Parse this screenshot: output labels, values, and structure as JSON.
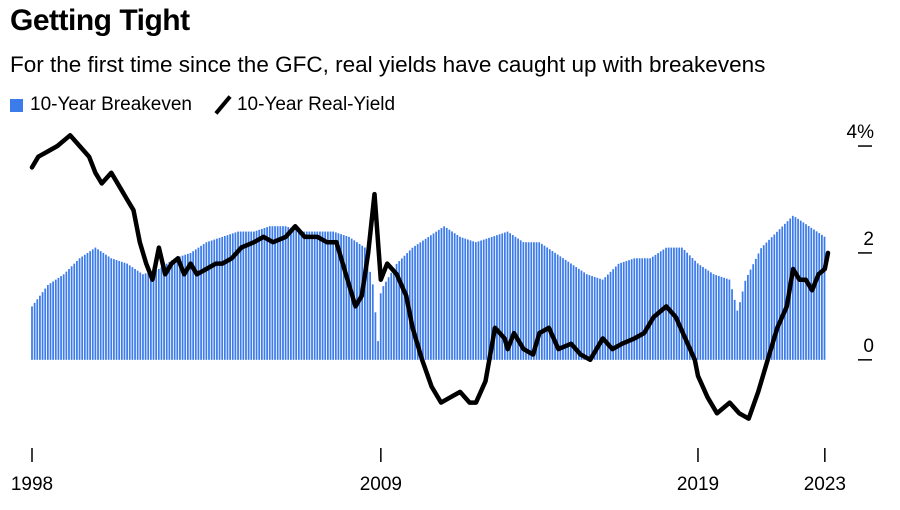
{
  "title": "Getting Tight",
  "subtitle": "For the first time since the GFC, real yields have caught up with breakevens",
  "legend": {
    "breakeven_label": "10-Year Breakeven",
    "realyield_label": "10-Year Real-Yield"
  },
  "colors": {
    "breakeven": "#3c7bea",
    "realyield": "#000000",
    "axis": "#000000"
  },
  "chart_data": {
    "type": "bar",
    "x_range": [
      1998.0,
      2023.1
    ],
    "ylim": [
      -1.5,
      4.3
    ],
    "grid": false,
    "legend_placement": "top-left",
    "y_ticks": [
      {
        "value": 4,
        "label": "4%"
      },
      {
        "value": 2,
        "label": "2"
      },
      {
        "value": 0,
        "label": "0"
      }
    ],
    "x_ticks": [
      {
        "value": 1998,
        "label": "1998"
      },
      {
        "value": 2009,
        "label": "2009"
      },
      {
        "value": 2019,
        "label": "2019"
      },
      {
        "value": 2023,
        "label": "2023"
      }
    ],
    "series": [
      {
        "name": "10-Year Breakeven",
        "type": "bar",
        "x": [
          1998.0,
          1998.5,
          1999.0,
          1999.5,
          2000.0,
          2000.5,
          2001.0,
          2001.5,
          2002.0,
          2002.5,
          2003.0,
          2003.5,
          2004.0,
          2004.5,
          2005.0,
          2005.5,
          2006.0,
          2006.5,
          2007.0,
          2007.5,
          2008.0,
          2008.5,
          2008.75,
          2008.92,
          2009.0,
          2009.5,
          2010.0,
          2010.5,
          2011.0,
          2011.5,
          2012.0,
          2012.5,
          2013.0,
          2013.5,
          2014.0,
          2014.5,
          2015.0,
          2015.5,
          2016.0,
          2016.5,
          2017.0,
          2017.5,
          2018.0,
          2018.5,
          2019.0,
          2019.5,
          2020.0,
          2020.25,
          2020.5,
          2021.0,
          2021.5,
          2022.0,
          2022.5,
          2023.0
        ],
        "values": [
          1.0,
          1.4,
          1.6,
          1.9,
          2.1,
          1.9,
          1.8,
          1.6,
          1.7,
          1.9,
          2.0,
          2.2,
          2.3,
          2.4,
          2.4,
          2.5,
          2.5,
          2.4,
          2.4,
          2.4,
          2.3,
          2.1,
          1.4,
          0.3,
          1.3,
          1.8,
          2.1,
          2.3,
          2.5,
          2.3,
          2.2,
          2.3,
          2.4,
          2.2,
          2.2,
          2.0,
          1.8,
          1.6,
          1.5,
          1.8,
          1.9,
          1.9,
          2.1,
          2.1,
          1.8,
          1.6,
          1.5,
          0.9,
          1.5,
          2.1,
          2.4,
          2.7,
          2.5,
          2.3
        ]
      },
      {
        "name": "10-Year Real-Yield",
        "type": "line",
        "x": [
          1998.0,
          1998.2,
          1998.5,
          1998.8,
          1999.0,
          1999.2,
          1999.5,
          1999.8,
          2000.0,
          2000.2,
          2000.5,
          2000.8,
          2001.0,
          2001.2,
          2001.4,
          2001.6,
          2001.8,
          2002.0,
          2002.2,
          2002.4,
          2002.6,
          2002.8,
          2003.0,
          2003.2,
          2003.5,
          2003.8,
          2004.0,
          2004.3,
          2004.6,
          2005.0,
          2005.3,
          2005.6,
          2006.0,
          2006.3,
          2006.6,
          2007.0,
          2007.3,
          2007.6,
          2008.0,
          2008.2,
          2008.4,
          2008.6,
          2008.8,
          2009.0,
          2009.2,
          2009.5,
          2009.8,
          2010.0,
          2010.3,
          2010.6,
          2010.9,
          2011.2,
          2011.5,
          2011.8,
          2012.0,
          2012.3,
          2012.6,
          2012.9,
          2013.0,
          2013.2,
          2013.5,
          2013.8,
          2014.0,
          2014.3,
          2014.6,
          2015.0,
          2015.3,
          2015.6,
          2016.0,
          2016.3,
          2016.6,
          2017.0,
          2017.3,
          2017.6,
          2018.0,
          2018.3,
          2018.6,
          2018.9,
          2019.0,
          2019.3,
          2019.6,
          2020.0,
          2020.3,
          2020.6,
          2020.9,
          2021.2,
          2021.5,
          2021.8,
          2022.0,
          2022.2,
          2022.4,
          2022.6,
          2022.8,
          2023.0,
          2023.1
        ],
        "values": [
          3.6,
          3.8,
          3.9,
          4.0,
          4.1,
          4.2,
          4.0,
          3.8,
          3.5,
          3.3,
          3.5,
          3.2,
          3.0,
          2.8,
          2.2,
          1.8,
          1.5,
          2.1,
          1.6,
          1.8,
          1.9,
          1.6,
          1.8,
          1.6,
          1.7,
          1.8,
          1.8,
          1.9,
          2.1,
          2.2,
          2.3,
          2.2,
          2.3,
          2.5,
          2.3,
          2.3,
          2.2,
          2.2,
          1.4,
          1.0,
          1.2,
          2.0,
          3.1,
          1.5,
          1.8,
          1.6,
          1.2,
          0.6,
          0.0,
          -0.5,
          -0.8,
          -0.7,
          -0.6,
          -0.8,
          -0.8,
          -0.4,
          0.6,
          0.4,
          0.2,
          0.5,
          0.2,
          0.1,
          0.5,
          0.6,
          0.2,
          0.3,
          0.1,
          0.0,
          0.4,
          0.2,
          0.3,
          0.4,
          0.5,
          0.8,
          1.0,
          0.8,
          0.4,
          0.0,
          -0.3,
          -0.7,
          -1.0,
          -0.8,
          -1.0,
          -1.1,
          -0.6,
          0.0,
          0.6,
          1.0,
          1.7,
          1.5,
          1.5,
          1.3,
          1.6,
          1.7,
          2.0
        ]
      }
    ]
  }
}
